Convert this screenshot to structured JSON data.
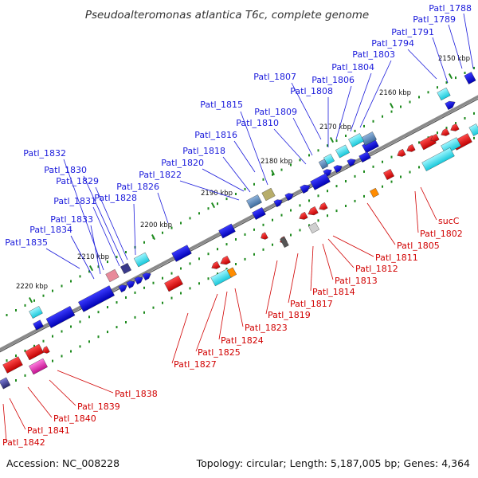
{
  "title": "Pseudoalteromonas atlantica T6c, complete genome",
  "footer": {
    "accession": "Accession: NC_008228",
    "topology": "Topology: circular; Length: 5,187,005 bp; Genes: 4,364"
  },
  "colors": {
    "forward_label": "#1a1adb",
    "reverse_label": "#d10000",
    "backbone": "#8a8a8a",
    "tick": "#1d8a1d"
  },
  "scale": [
    "2150 kbp",
    "2160 kbp",
    "2170 kbp",
    "2180 kbp",
    "2190 kbp",
    "2200 kbp",
    "2210 kbp",
    "2220 kbp"
  ],
  "forward_genes": [
    "Patl_1788",
    "Patl_1789",
    "Patl_1791",
    "Patl_1794",
    "Patl_1803",
    "Patl_1804",
    "Patl_1806",
    "Patl_1807",
    "Patl_1808",
    "Patl_1809",
    "Patl_1810",
    "Patl_1815",
    "Patl_1816",
    "Patl_1818",
    "Patl_1820",
    "Patl_1822",
    "Patl_1826",
    "Patl_1828",
    "Patl_1829",
    "Patl_1830",
    "Patl_1831",
    "Patl_1832",
    "Patl_1833",
    "Patl_1834",
    "Patl_1835"
  ],
  "reverse_genes": [
    "sucC",
    "Patl_1802",
    "Patl_1805",
    "Patl_1811",
    "Patl_1812",
    "Patl_1813",
    "Patl_1814",
    "Patl_1817",
    "Patl_1819",
    "Patl_1823",
    "Patl_1824",
    "Patl_1825",
    "Patl_1827",
    "Patl_1838",
    "Patl_1839",
    "Patl_1840",
    "Patl_1841",
    "Patl_1842"
  ]
}
